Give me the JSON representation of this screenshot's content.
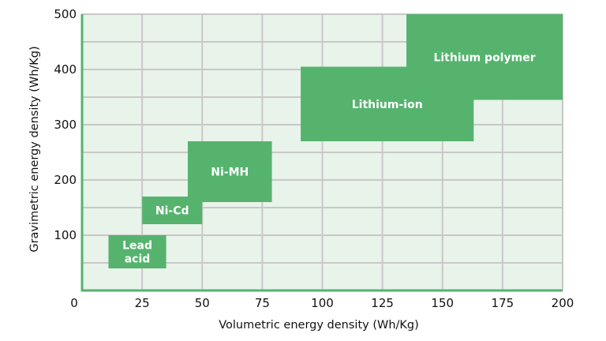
{
  "chart_data": {
    "type": "area",
    "title": "",
    "xlabel": "Volumetric energy density (Wh/Kg)",
    "ylabel": "Gravimetric energy density (Wh/Kg)",
    "xlim": [
      0,
      200
    ],
    "ylim": [
      0,
      500
    ],
    "xticks": [
      "0",
      "25",
      "50",
      "75",
      "100",
      "125",
      "150",
      "175",
      "200"
    ],
    "yticks": [
      "100",
      "200",
      "300",
      "400",
      "500"
    ],
    "grid": true,
    "colors": {
      "plot_background": "#e8f3ea",
      "grid": "#c8c8c8",
      "region_fill": "#55b36e",
      "axis": "#55b36e",
      "label": "#ffffff"
    },
    "regions": [
      {
        "label": [
          "Lead",
          "acid"
        ],
        "x": [
          11,
          35
        ],
        "y": [
          40,
          100
        ]
      },
      {
        "label": [
          "Ni-Cd"
        ],
        "x": [
          25,
          50
        ],
        "y": [
          120,
          170
        ]
      },
      {
        "label": [
          "Ni-MH"
        ],
        "x": [
          44,
          79
        ],
        "y": [
          160,
          270
        ]
      },
      {
        "label": [
          "Lithium-ion"
        ],
        "x": [
          91,
          163
        ],
        "y": [
          270,
          405
        ]
      },
      {
        "label": [
          "Lithium polymer"
        ],
        "x": [
          135,
          200
        ],
        "y": [
          345,
          505
        ]
      }
    ]
  }
}
